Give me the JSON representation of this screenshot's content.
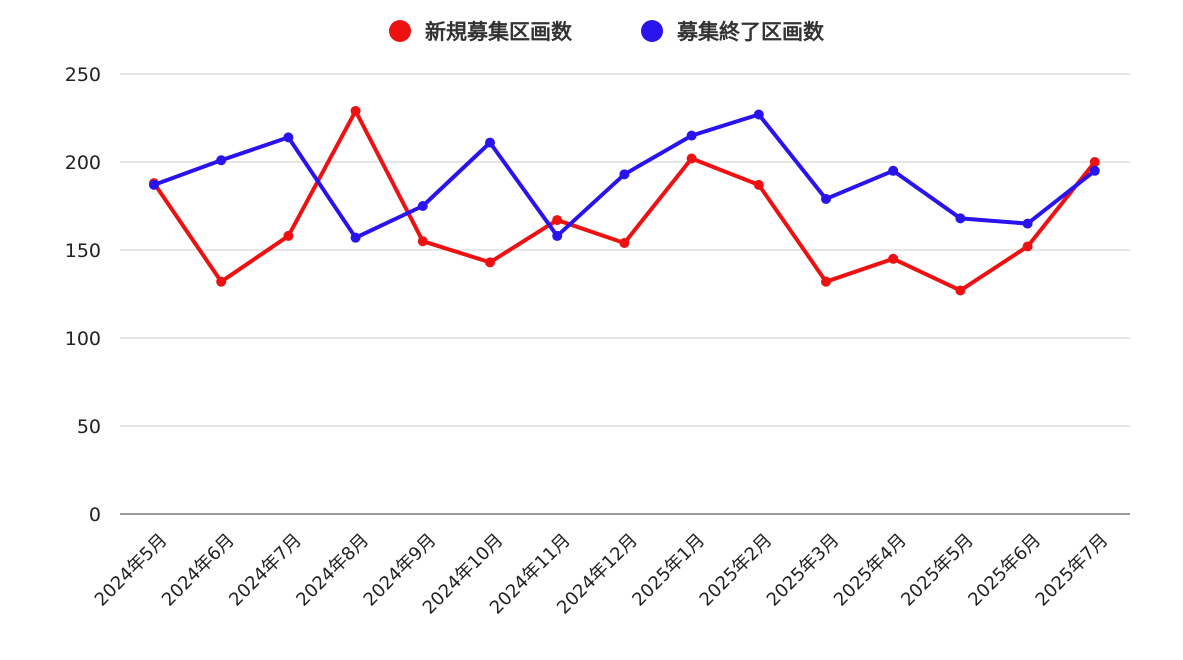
{
  "chart_data": {
    "type": "line",
    "categories": [
      "2024年5月",
      "2024年6月",
      "2024年7月",
      "2024年8月",
      "2024年9月",
      "2024年10月",
      "2024年11月",
      "2024年12月",
      "2025年1月",
      "2025年2月",
      "2025年3月",
      "2025年4月",
      "2025年5月",
      "2025年6月",
      "2025年7月"
    ],
    "series": [
      {
        "name": "新規募集区画数",
        "color": "#ee1111",
        "values": [
          188,
          132,
          158,
          229,
          155,
          143,
          167,
          154,
          202,
          187,
          132,
          145,
          127,
          152,
          200
        ]
      },
      {
        "name": "募集終了区画数",
        "color": "#2a14ee",
        "values": [
          187,
          201,
          214,
          157,
          175,
          211,
          158,
          193,
          215,
          227,
          179,
          195,
          168,
          165,
          195
        ]
      }
    ],
    "yticks": [
      0,
      50,
      100,
      150,
      200,
      250
    ],
    "ylim": [
      0,
      250
    ],
    "grid": true,
    "legend_position": "top-center",
    "gridline_color": "#cccccc",
    "axis_color": "#333333"
  }
}
